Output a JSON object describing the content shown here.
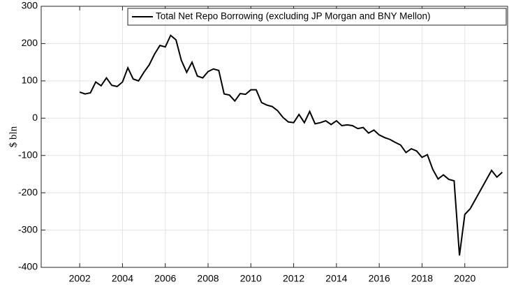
{
  "chart_data": {
    "type": "line",
    "ylabel": "$ bln",
    "x": [
      2002,
      2002.25,
      2002.5,
      2002.75,
      2003,
      2003.25,
      2003.5,
      2003.75,
      2004,
      2004.25,
      2004.5,
      2004.75,
      2005,
      2005.25,
      2005.5,
      2005.75,
      2006,
      2006.25,
      2006.5,
      2006.75,
      2007,
      2007.25,
      2007.5,
      2007.75,
      2008,
      2008.25,
      2008.5,
      2008.75,
      2009,
      2009.25,
      2009.5,
      2009.75,
      2010,
      2010.25,
      2010.5,
      2010.75,
      2011,
      2011.25,
      2011.5,
      2011.75,
      2012,
      2012.25,
      2012.5,
      2012.75,
      2013,
      2013.25,
      2013.5,
      2013.75,
      2014,
      2014.25,
      2014.5,
      2014.75,
      2015,
      2015.25,
      2015.5,
      2015.75,
      2016,
      2016.25,
      2016.5,
      2016.75,
      2017,
      2017.25,
      2017.5,
      2017.75,
      2018,
      2018.25,
      2018.5,
      2018.75,
      2019,
      2019.25,
      2019.5,
      2019.75,
      2020,
      2020.25,
      2021.25,
      2021.5,
      2021.75
    ],
    "series": [
      {
        "name": "Total Net Repo Borrowing (excluding JP Morgan and BNY Mellon)",
        "color": "#000000",
        "values": [
          70,
          65,
          68,
          97,
          87,
          108,
          88,
          85,
          97,
          135,
          105,
          100,
          123,
          143,
          172,
          195,
          191,
          222,
          210,
          155,
          123,
          150,
          113,
          108,
          125,
          132,
          128,
          65,
          62,
          46,
          66,
          64,
          76,
          76,
          42,
          35,
          31,
          20,
          2,
          -10,
          -12,
          10,
          -12,
          18,
          -15,
          -12,
          -7,
          -17,
          -7,
          -20,
          -18,
          -20,
          -28,
          -25,
          -40,
          -32,
          -45,
          -52,
          -57,
          -65,
          -72,
          -92,
          -82,
          -88,
          -105,
          -98,
          -137,
          -163,
          -152,
          -164,
          -168,
          -368,
          -258,
          -243,
          -140,
          -158,
          -145
        ]
      }
    ],
    "xlim": [
      2000.2,
      2022
    ],
    "ylim": [
      -400,
      300
    ],
    "xticks": [
      2002,
      2004,
      2006,
      2008,
      2010,
      2012,
      2014,
      2016,
      2018,
      2020
    ],
    "yticks": [
      -400,
      -300,
      -200,
      -100,
      0,
      100,
      200,
      300
    ],
    "grid": true,
    "legend": "top-right"
  }
}
